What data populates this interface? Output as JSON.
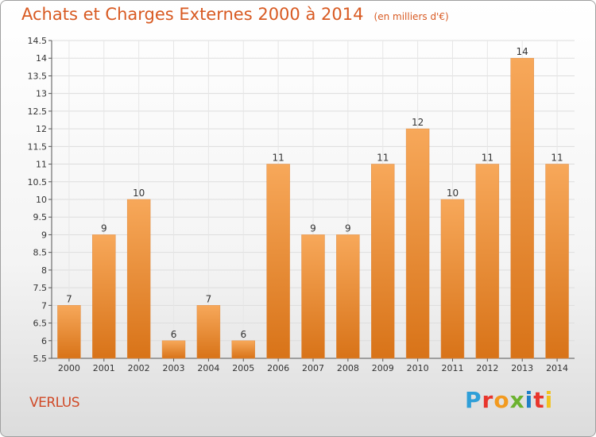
{
  "title": "Achats et Charges Externes 2000 à 2014",
  "unit_note": "(en milliers d'€)",
  "place": "VERLUS",
  "logo": {
    "text": "Proxiti",
    "letter_colors": [
      "#2f9fd8",
      "#e8352c",
      "#f29a1f",
      "#6bb22f",
      "#1f7fc8",
      "#e8352c",
      "#f2c21f"
    ]
  },
  "colors": {
    "title": "#d85a22",
    "bar_top": "#f7a85a",
    "bar_bottom": "#d87318",
    "place": "#d04a28"
  },
  "chart_data": {
    "type": "bar",
    "categories": [
      "2000",
      "2001",
      "2002",
      "2003",
      "2004",
      "2005",
      "2006",
      "2007",
      "2008",
      "2009",
      "2010",
      "2011",
      "2012",
      "2013",
      "2014"
    ],
    "values": [
      7,
      9,
      10,
      6,
      7,
      6,
      11,
      9,
      9,
      11,
      12,
      10,
      11,
      14,
      11
    ],
    "data_labels": [
      "7",
      "9",
      "10",
      "6",
      "7",
      "6",
      "11",
      "9",
      "9",
      "11",
      "12",
      "10",
      "11",
      "14",
      "11"
    ],
    "ylim": [
      5.5,
      14.5
    ],
    "yticks": [
      5.5,
      6,
      6.5,
      7,
      7.5,
      8,
      8.5,
      9,
      9.5,
      10,
      10.5,
      11,
      11.5,
      12,
      12.5,
      13,
      13.5,
      14,
      14.5
    ],
    "ytick_labels": [
      "5.5",
      "6",
      "6.5",
      "7",
      "7.5",
      "8",
      "8.5",
      "9",
      "9.5",
      "10",
      "10.5",
      "11",
      "11.5",
      "12",
      "12.5",
      "13",
      "13.5",
      "14",
      "14.5"
    ],
    "grid": true,
    "xlabel": "",
    "ylabel": ""
  }
}
